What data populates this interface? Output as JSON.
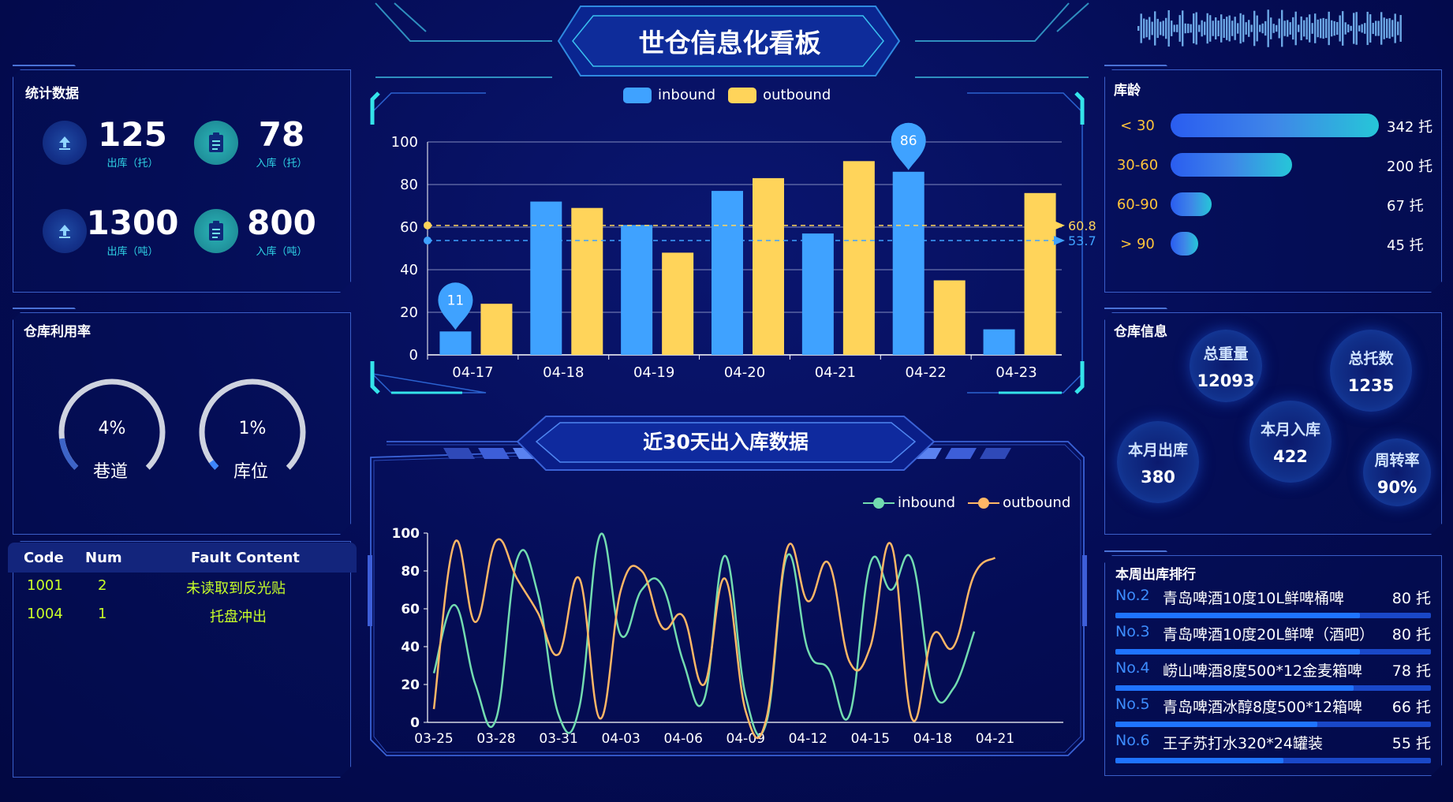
{
  "header": {
    "title": "世仓信息化看板"
  },
  "stats": {
    "title": "统计数据",
    "items": [
      {
        "value": "125",
        "label": "出库（托）",
        "icon": "upload-icon"
      },
      {
        "value": "78",
        "label": "入库（托）",
        "icon": "clipboard-icon"
      },
      {
        "value": "1300",
        "label": "出库（吨）",
        "icon": "upload-icon"
      },
      {
        "value": "800",
        "label": "入库（吨）",
        "icon": "clipboard-icon"
      }
    ]
  },
  "utilization": {
    "title": "仓库利用率",
    "gauges": [
      {
        "value": 4,
        "value_label": "4%",
        "name": "巷道",
        "color": "#3d64c8"
      },
      {
        "value": 1,
        "value_label": "1%",
        "name": "库位",
        "color": "#3d86ff"
      }
    ]
  },
  "faults": {
    "headers": [
      "Code",
      "Num",
      "Fault Content"
    ],
    "rows": [
      {
        "code": "1001",
        "num": "2",
        "content": "未读取到反光贴"
      },
      {
        "code": "1004",
        "num": "1",
        "content": "托盘冲出"
      }
    ]
  },
  "age": {
    "title": "库龄",
    "rows": [
      {
        "label": "< 30",
        "value": 342,
        "value_label": "342 托"
      },
      {
        "label": "30-60",
        "value": 200,
        "value_label": "200 托"
      },
      {
        "label": "60-90",
        "value": 67,
        "value_label": "67 托"
      },
      {
        "label": "> 90",
        "value": 45,
        "value_label": "45 托"
      }
    ]
  },
  "info": {
    "title": "仓库信息",
    "bubbles": [
      {
        "label": "总重量",
        "value": "12093"
      },
      {
        "label": "总托数",
        "value": "1235"
      },
      {
        "label": "本月入库",
        "value": "422"
      },
      {
        "label": "本月出库",
        "value": "380"
      },
      {
        "label": "周转率",
        "value": "90%"
      }
    ]
  },
  "ranking": {
    "title": "本周出库排行",
    "rows": [
      {
        "no": "No.2",
        "name": "青岛啤酒10度10L鲜啤桶啤",
        "value": 80,
        "value_label": "80 托"
      },
      {
        "no": "No.3",
        "name": "青岛啤酒10度20L鲜啤（酒吧）",
        "value": 80,
        "value_label": "80 托"
      },
      {
        "no": "No.4",
        "name": "崂山啤酒8度500*12金麦箱啤",
        "value": 78,
        "value_label": "78 托"
      },
      {
        "no": "No.5",
        "name": "青岛啤酒冰醇8度500*12箱啤",
        "value": 66,
        "value_label": "66 托"
      },
      {
        "no": "No.6",
        "name": "王子苏打水320*24罐装",
        "value": 55,
        "value_label": "55 托"
      }
    ]
  },
  "trend": {
    "title": "近30天出入库数据"
  },
  "colors": {
    "inbound_bar": "#3fa2ff",
    "outbound_bar": "#ffd45a",
    "inbound_line": "#72dbb0",
    "outbound_line": "#ffb766",
    "accent": "#34e3ea"
  },
  "chart_data": [
    {
      "type": "bar",
      "categories": [
        "04-17",
        "04-18",
        "04-19",
        "04-20",
        "04-21",
        "04-22",
        "04-23"
      ],
      "series": [
        {
          "name": "inbound",
          "values": [
            11,
            72,
            61,
            77,
            57,
            86,
            12
          ]
        },
        {
          "name": "outbound",
          "values": [
            24,
            69,
            48,
            83,
            91,
            35,
            76
          ]
        }
      ],
      "ylim": [
        0,
        100
      ],
      "yticks": [
        0,
        20,
        40,
        60,
        80,
        100
      ],
      "max_markers": [
        {
          "series": "inbound",
          "category": "04-17",
          "value": 11,
          "label": "11"
        },
        {
          "series": "inbound",
          "category": "04-22",
          "value": 86,
          "label": "86"
        }
      ],
      "average_lines": [
        {
          "series": "outbound",
          "value": 60.8,
          "label": "60.8"
        },
        {
          "series": "inbound",
          "value": 53.7,
          "label": "53.7"
        }
      ],
      "legend": "top-center",
      "grid": true
    },
    {
      "type": "line",
      "x": [
        "03-25",
        "03-26",
        "03-27",
        "03-28",
        "03-29",
        "03-30",
        "03-31",
        "04-01",
        "04-02",
        "04-03",
        "04-04",
        "04-05",
        "04-06",
        "04-07",
        "04-08",
        "04-09",
        "04-10",
        "04-11",
        "04-12",
        "04-13",
        "04-14",
        "04-15",
        "04-16",
        "04-17",
        "04-18",
        "04-19",
        "04-20",
        "04-21",
        "04-22",
        "04-23"
      ],
      "xticks": [
        "03-25",
        "03-28",
        "03-31",
        "04-03",
        "04-06",
        "04-09",
        "04-12",
        "04-15",
        "04-18",
        "04-21"
      ],
      "series": [
        {
          "name": "inbound",
          "values": [
            26,
            62,
            20,
            2,
            86,
            68,
            4,
            8,
            99,
            46,
            70,
            72,
            32,
            12,
            88,
            14,
            0,
            88,
            38,
            28,
            4,
            84,
            70,
            86,
            18,
            18,
            48,
            null,
            null,
            null
          ]
        },
        {
          "name": "outbound",
          "values": [
            7,
            95,
            53,
            96,
            76,
            58,
            36,
            76,
            2,
            70,
            80,
            50,
            56,
            20,
            76,
            6,
            2,
            92,
            64,
            84,
            32,
            40,
            94,
            2,
            46,
            40,
            78,
            87,
            null,
            null
          ]
        }
      ],
      "ylim": [
        0,
        100
      ],
      "yticks": [
        0,
        20,
        40,
        60,
        80,
        100
      ],
      "legend": "top-right",
      "grid": false
    }
  ]
}
